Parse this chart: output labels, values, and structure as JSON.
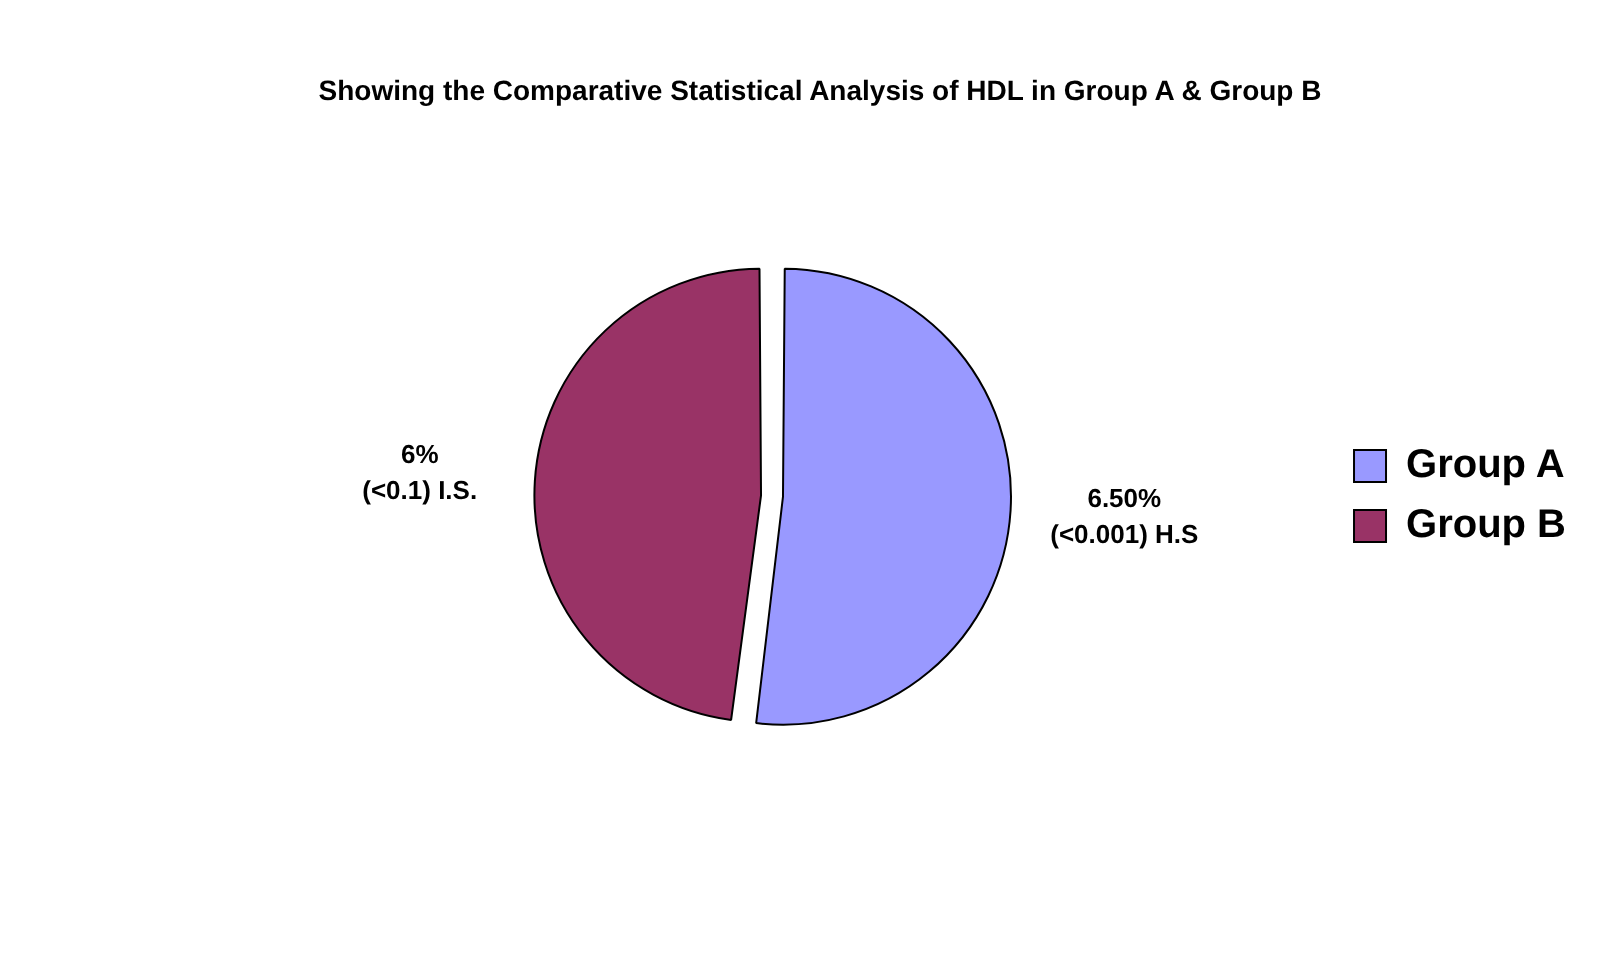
{
  "chart_data": {
    "type": "pie",
    "title": "Showing the Comparative Statistical Analysis of HDL in Group A & Group B",
    "categories": [
      "Group A",
      "Group B"
    ],
    "values": [
      6.5,
      6
    ],
    "colors": [
      "#9999ff",
      "#993366"
    ],
    "value_labels": [
      "6.50%\n(<0.001) H.S",
      "6%\n(<0.1) I.S."
    ],
    "legend": "right"
  }
}
